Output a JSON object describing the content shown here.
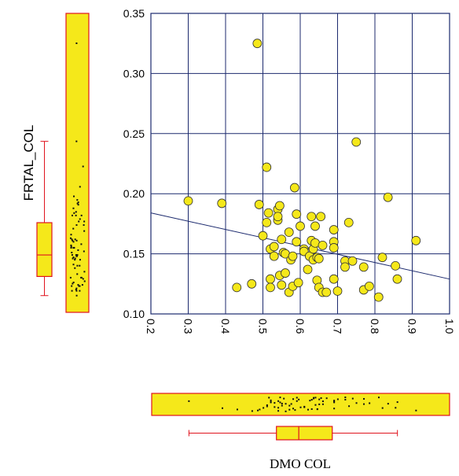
{
  "chart_data": {
    "type": "scatter",
    "title": "",
    "xlabel": "DMO COL",
    "ylabel": "FRTAL_COL",
    "xlim": [
      0.2,
      1.0
    ],
    "ylim": [
      0.1,
      0.35
    ],
    "x_ticks": [
      "0.2",
      "0.3",
      "0.4",
      "0.5",
      "0.6",
      "0.7",
      "0.8",
      "0.9",
      "1.0"
    ],
    "y_ticks": [
      "0.10",
      "0.15",
      "0.20",
      "0.25",
      "0.30",
      "0.35"
    ],
    "grid": true,
    "colors": {
      "point_fill": "#f5e81a",
      "point_stroke": "#333333",
      "grid": "#1c2a6e",
      "trend": "#1c2a6e",
      "box_stroke": "#e0141e",
      "box_fill": "#f5e81a",
      "jitter": "#111111"
    },
    "points": [
      [
        0.3,
        0.194
      ],
      [
        0.39,
        0.192
      ],
      [
        0.43,
        0.122
      ],
      [
        0.47,
        0.125
      ],
      [
        0.485,
        0.325
      ],
      [
        0.49,
        0.191
      ],
      [
        0.5,
        0.165
      ],
      [
        0.51,
        0.222
      ],
      [
        0.51,
        0.176
      ],
      [
        0.515,
        0.184
      ],
      [
        0.52,
        0.154
      ],
      [
        0.52,
        0.129
      ],
      [
        0.52,
        0.122
      ],
      [
        0.53,
        0.156
      ],
      [
        0.53,
        0.148
      ],
      [
        0.54,
        0.187
      ],
      [
        0.54,
        0.178
      ],
      [
        0.54,
        0.181
      ],
      [
        0.545,
        0.19
      ],
      [
        0.545,
        0.132
      ],
      [
        0.55,
        0.124
      ],
      [
        0.55,
        0.162
      ],
      [
        0.555,
        0.151
      ],
      [
        0.56,
        0.134
      ],
      [
        0.56,
        0.15
      ],
      [
        0.57,
        0.118
      ],
      [
        0.57,
        0.168
      ],
      [
        0.575,
        0.145
      ],
      [
        0.58,
        0.148
      ],
      [
        0.58,
        0.123
      ],
      [
        0.585,
        0.205
      ],
      [
        0.59,
        0.183
      ],
      [
        0.59,
        0.16
      ],
      [
        0.595,
        0.126
      ],
      [
        0.6,
        0.173
      ],
      [
        0.61,
        0.154
      ],
      [
        0.61,
        0.152
      ],
      [
        0.62,
        0.137
      ],
      [
        0.625,
        0.148
      ],
      [
        0.63,
        0.181
      ],
      [
        0.63,
        0.161
      ],
      [
        0.635,
        0.145
      ],
      [
        0.635,
        0.154
      ],
      [
        0.64,
        0.173
      ],
      [
        0.64,
        0.159
      ],
      [
        0.645,
        0.128
      ],
      [
        0.645,
        0.147
      ],
      [
        0.65,
        0.146
      ],
      [
        0.65,
        0.122
      ],
      [
        0.655,
        0.181
      ],
      [
        0.66,
        0.157
      ],
      [
        0.66,
        0.118
      ],
      [
        0.67,
        0.118
      ],
      [
        0.69,
        0.17
      ],
      [
        0.69,
        0.16
      ],
      [
        0.69,
        0.155
      ],
      [
        0.69,
        0.129
      ],
      [
        0.7,
        0.119
      ],
      [
        0.72,
        0.144
      ],
      [
        0.72,
        0.139
      ],
      [
        0.73,
        0.176
      ],
      [
        0.74,
        0.144
      ],
      [
        0.75,
        0.243
      ],
      [
        0.77,
        0.139
      ],
      [
        0.77,
        0.12
      ],
      [
        0.785,
        0.123
      ],
      [
        0.81,
        0.114
      ],
      [
        0.82,
        0.147
      ],
      [
        0.835,
        0.197
      ],
      [
        0.855,
        0.14
      ],
      [
        0.86,
        0.129
      ],
      [
        0.91,
        0.161
      ]
    ],
    "trend_line": {
      "x": [
        0.2,
        1.0
      ],
      "y": [
        0.184,
        0.129
      ]
    },
    "x_box": {
      "min": 0.3,
      "q1": 0.535,
      "median": 0.595,
      "q3": 0.685,
      "max": 0.86
    },
    "y_box": {
      "min": 0.114,
      "q1": 0.13,
      "median": 0.148,
      "q3": 0.175,
      "max": 0.243
    }
  }
}
